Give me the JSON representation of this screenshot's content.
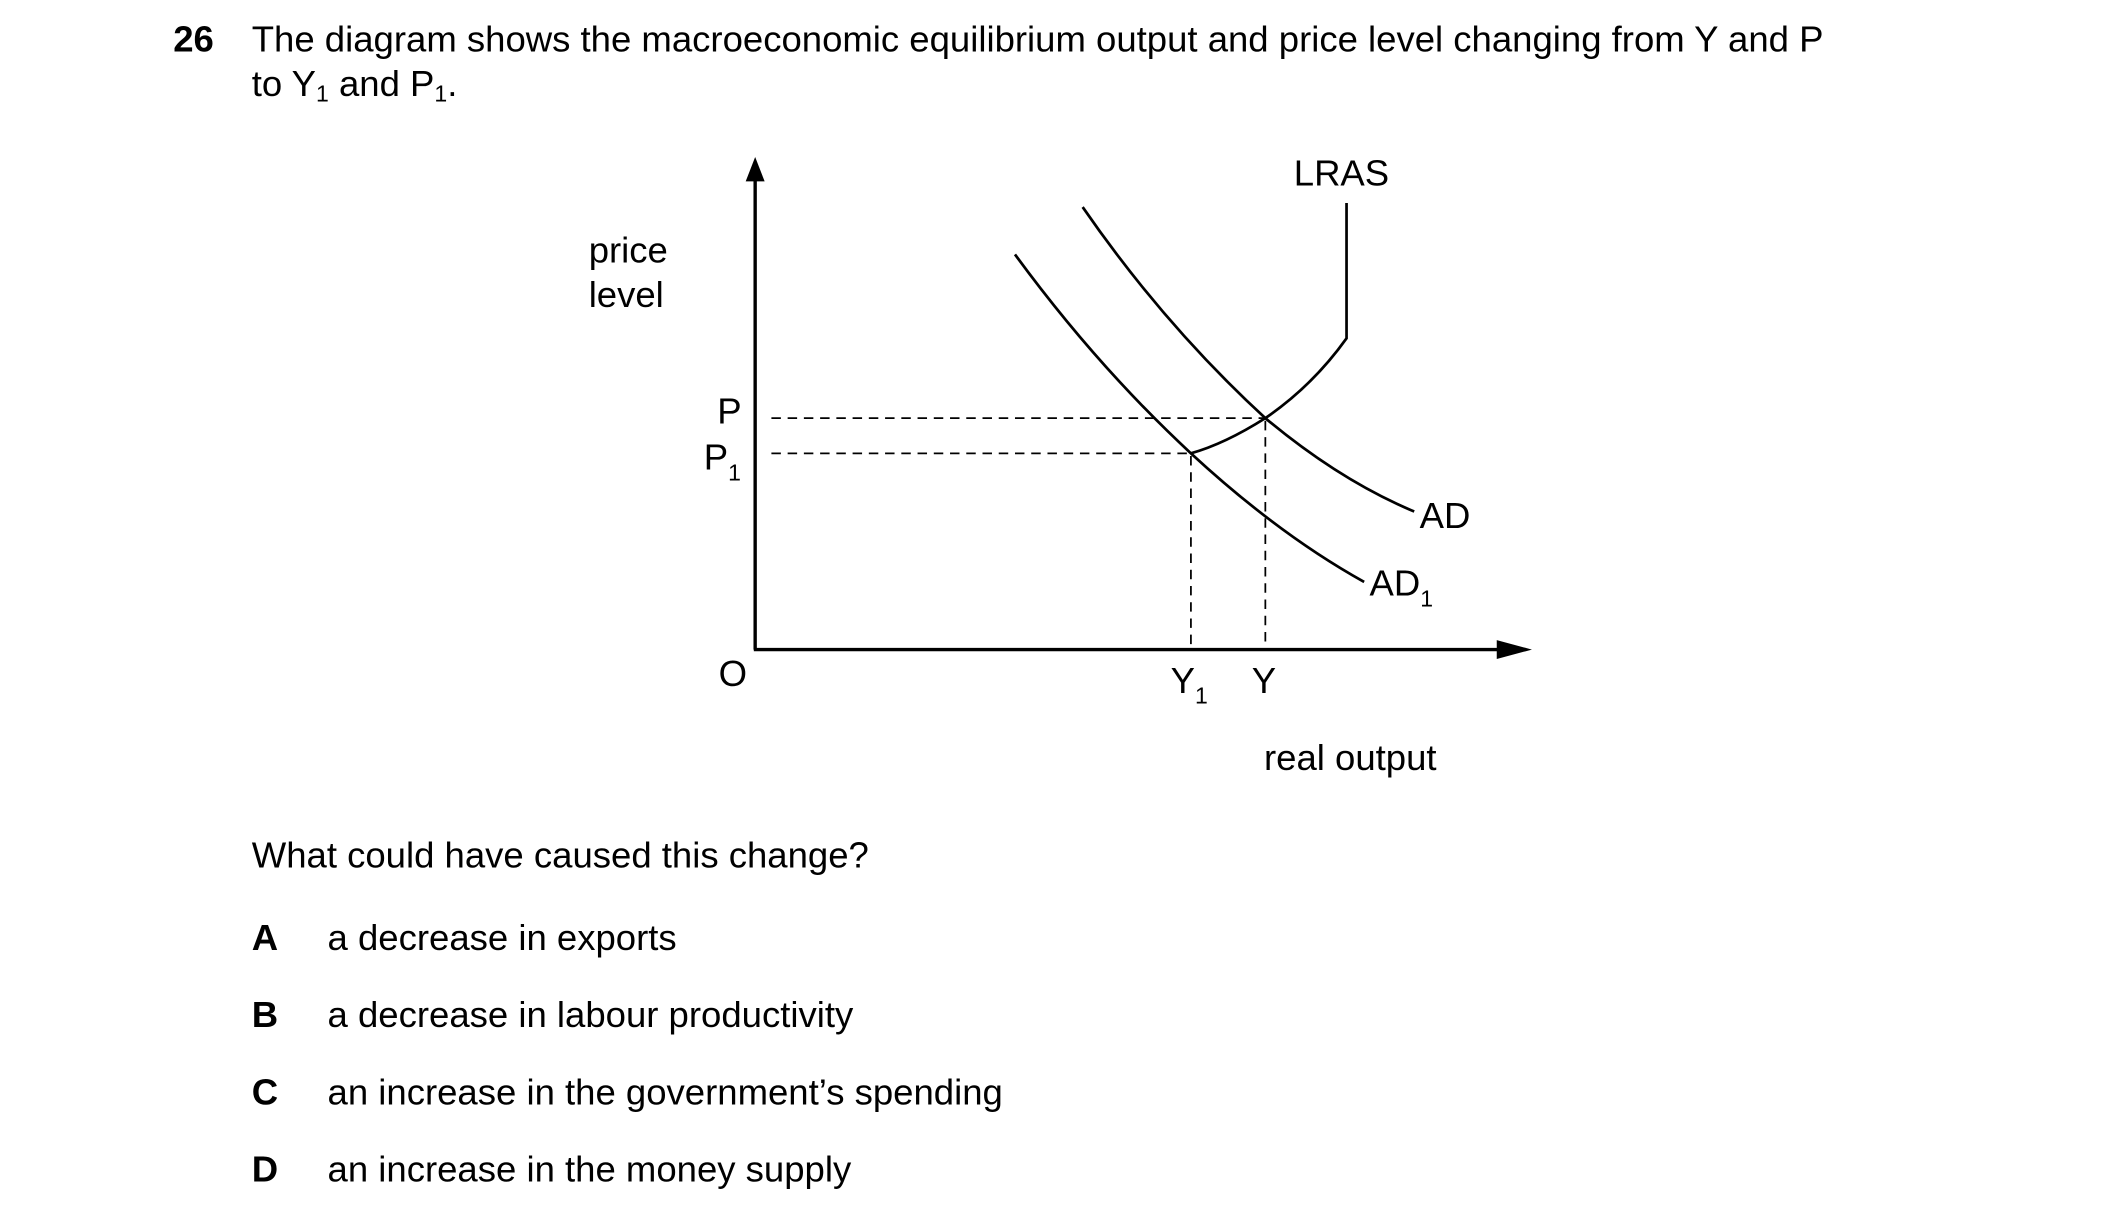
{
  "question": {
    "number": "26",
    "stem_line1": "The diagram shows the macroeconomic equilibrium output and price level changing from Y and P",
    "stem_line2_prefix": "to Y",
    "stem_line2_sub1": "1",
    "stem_line2_mid": " and P",
    "stem_line2_sub2": "1",
    "stem_line2_suffix": ".",
    "prompt": "What could have caused this change?",
    "options": [
      {
        "letter": "A",
        "text": "a decrease in exports"
      },
      {
        "letter": "B",
        "text": "a decrease in labour productivity"
      },
      {
        "letter": "C",
        "text": "an increase in the government’s spending"
      },
      {
        "letter": "D",
        "text": "an increase in the money supply"
      }
    ]
  },
  "diagram": {
    "y_axis_label_line1": "price",
    "y_axis_label_line2": "level",
    "x_axis_label": "real output",
    "origin": "O",
    "p_label": "P",
    "p1_label": "P",
    "p1_sub": "1",
    "y_label": "Y",
    "y1_label": "Y",
    "y1_sub": "1",
    "lras_label": "LRAS",
    "ad_label": "AD",
    "ad1_label": "AD",
    "ad1_sub": "1"
  }
}
